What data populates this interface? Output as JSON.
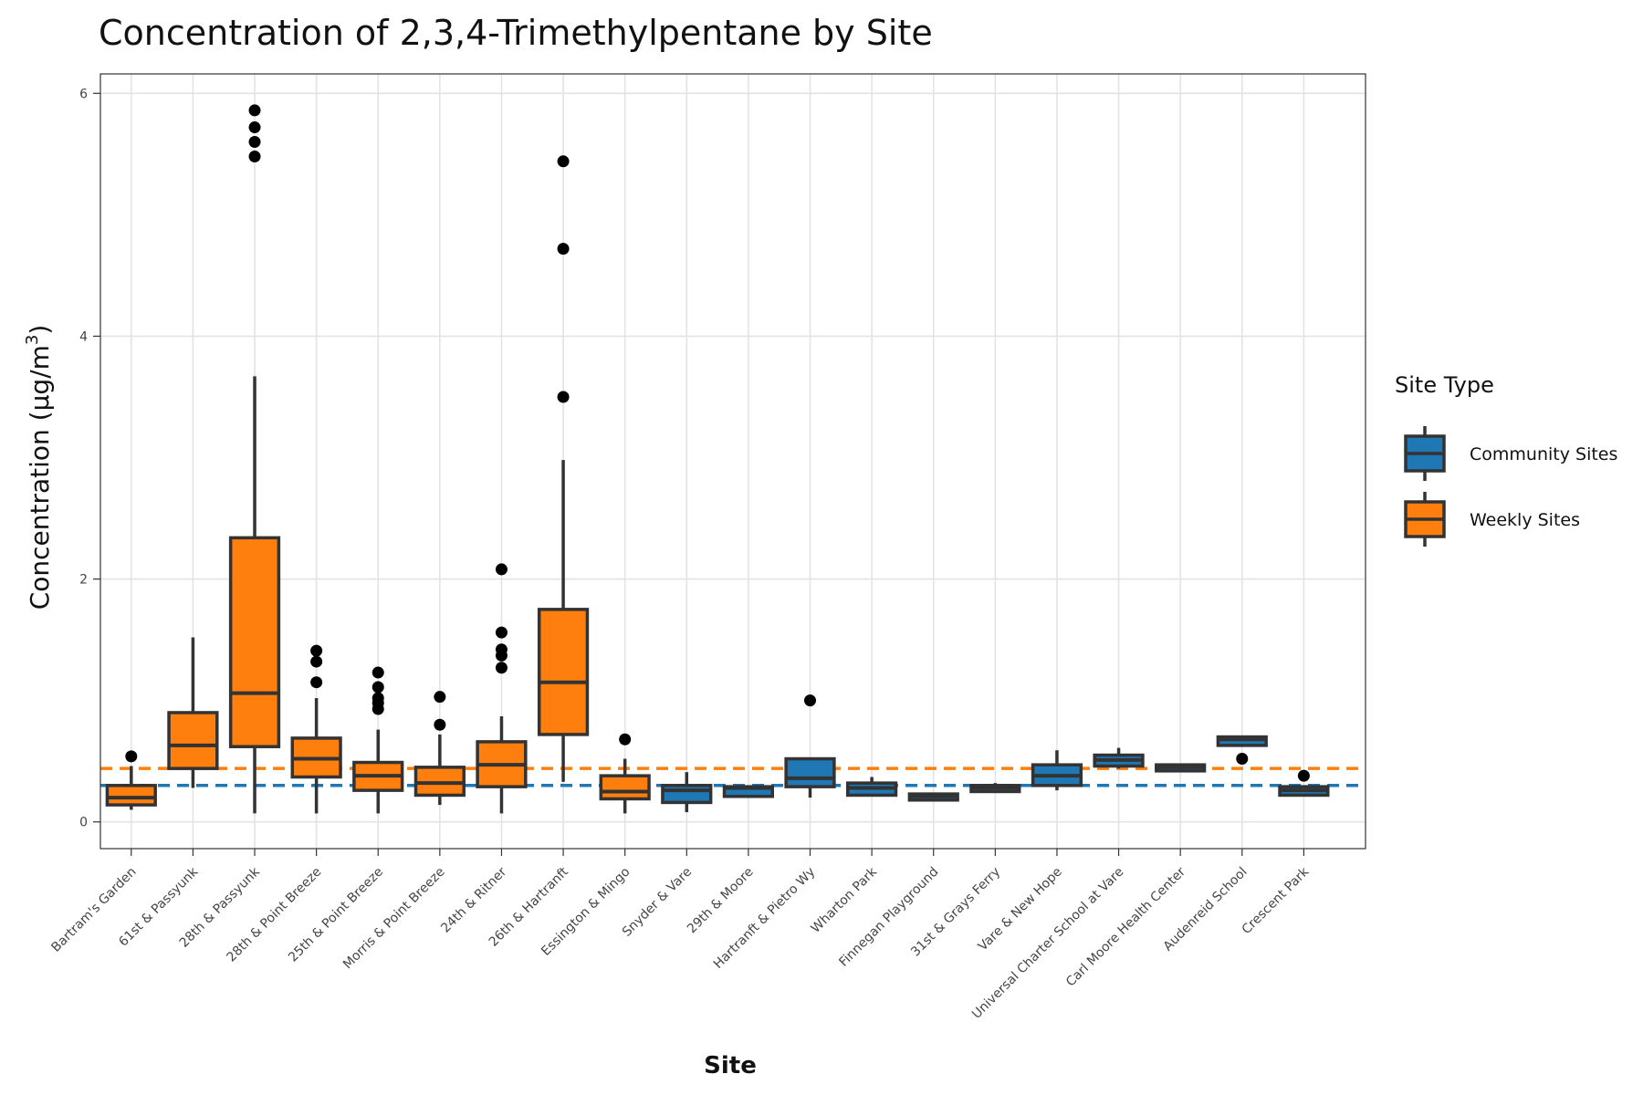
{
  "chart_data": {
    "type": "boxplot",
    "title": "Concentration of 2,3,4-Trimethylpentane by Site",
    "xlabel": "Site",
    "ylabel_main": "Concentration (μg/m",
    "ylabel_sup": "3",
    "ylabel_close": ")",
    "ylim": [
      -0.22,
      6.16
    ],
    "yticks": [
      "0",
      "2",
      "4",
      "6"
    ],
    "grid": true,
    "legend": {
      "title": "Site Type",
      "placement": "right",
      "items": [
        {
          "label": "Community Sites",
          "color": "#1f77b4"
        },
        {
          "label": "Weekly Sites",
          "color": "#ff7f0e"
        }
      ]
    },
    "reference_lines": [
      {
        "group": "Weekly Sites",
        "value": 0.44,
        "color": "#ff7f0e",
        "style": "dashed"
      },
      {
        "group": "Community Sites",
        "value": 0.3,
        "color": "#1f77b4",
        "style": "dashed"
      }
    ],
    "categories": [
      "Bartram's Garden",
      "61st & Passyunk",
      "28th & Passyunk",
      "28th & Point Breeze",
      "25th & Point Breeze",
      "Morris & Point Breeze",
      "24th & Ritner",
      "26th & Hartranft",
      "Essington & Mingo",
      "Snyder & Vare",
      "29th & Moore",
      "Hartranft & Pietro Wy",
      "Wharton Park",
      "Finnegan Playground",
      "31st & Grays Ferry",
      "Vare & New Hope",
      "Universal Charter School at Vare",
      "Carl Moore Health Center",
      "Audenreid School",
      "Crescent Park"
    ],
    "boxes": [
      {
        "site": "Bartram's Garden",
        "group": "Weekly Sites",
        "whisker_low": 0.1,
        "q1": 0.14,
        "median": 0.2,
        "q3": 0.3,
        "whisker_high": 0.46,
        "outliers": [
          0.54
        ]
      },
      {
        "site": "61st & Passyunk",
        "group": "Weekly Sites",
        "whisker_low": 0.28,
        "q1": 0.44,
        "median": 0.63,
        "q3": 0.9,
        "whisker_high": 1.52,
        "outliers": []
      },
      {
        "site": "28th & Passyunk",
        "group": "Weekly Sites",
        "whisker_low": 0.07,
        "q1": 0.62,
        "median": 1.06,
        "q3": 2.34,
        "whisker_high": 3.67,
        "outliers": [
          5.48,
          5.6,
          5.72,
          5.86
        ]
      },
      {
        "site": "28th & Point Breeze",
        "group": "Weekly Sites",
        "whisker_low": 0.07,
        "q1": 0.37,
        "median": 0.52,
        "q3": 0.69,
        "whisker_high": 1.02,
        "outliers": [
          1.15,
          1.32,
          1.41
        ]
      },
      {
        "site": "25th & Point Breeze",
        "group": "Weekly Sites",
        "whisker_low": 0.07,
        "q1": 0.26,
        "median": 0.38,
        "q3": 0.49,
        "whisker_high": 0.76,
        "outliers": [
          0.93,
          0.98,
          1.02,
          1.11,
          1.23
        ]
      },
      {
        "site": "Morris & Point Breeze",
        "group": "Weekly Sites",
        "whisker_low": 0.14,
        "q1": 0.22,
        "median": 0.32,
        "q3": 0.45,
        "whisker_high": 0.72,
        "outliers": [
          0.8,
          1.03
        ]
      },
      {
        "site": "24th & Ritner",
        "group": "Weekly Sites",
        "whisker_low": 0.07,
        "q1": 0.29,
        "median": 0.47,
        "q3": 0.66,
        "whisker_high": 0.87,
        "outliers": [
          1.27,
          1.37,
          1.42,
          1.56,
          2.08
        ]
      },
      {
        "site": "26th & Hartranft",
        "group": "Weekly Sites",
        "whisker_low": 0.33,
        "q1": 0.72,
        "median": 1.15,
        "q3": 1.75,
        "whisker_high": 2.98,
        "outliers": [
          3.5,
          4.72,
          5.44
        ]
      },
      {
        "site": "Essington & Mingo",
        "group": "Weekly Sites",
        "whisker_low": 0.07,
        "q1": 0.19,
        "median": 0.25,
        "q3": 0.38,
        "whisker_high": 0.52,
        "outliers": [
          0.68
        ]
      },
      {
        "site": "Snyder & Vare",
        "group": "Community Sites",
        "whisker_low": 0.08,
        "q1": 0.16,
        "median": 0.26,
        "q3": 0.3,
        "whisker_high": 0.41,
        "outliers": []
      },
      {
        "site": "29th & Moore",
        "group": "Community Sites",
        "whisker_low": 0.21,
        "q1": 0.21,
        "median": 0.28,
        "q3": 0.29,
        "whisker_high": 0.29,
        "outliers": []
      },
      {
        "site": "Hartranft & Pietro Wy",
        "group": "Community Sites",
        "whisker_low": 0.2,
        "q1": 0.29,
        "median": 0.36,
        "q3": 0.52,
        "whisker_high": 0.52,
        "outliers": [
          1.0
        ]
      },
      {
        "site": "Wharton Park",
        "group": "Community Sites",
        "whisker_low": 0.21,
        "q1": 0.22,
        "median": 0.28,
        "q3": 0.32,
        "whisker_high": 0.37,
        "outliers": []
      },
      {
        "site": "Finnegan Playground",
        "group": "Community Sites",
        "whisker_low": 0.18,
        "q1": 0.18,
        "median": 0.21,
        "q3": 0.23,
        "whisker_high": 0.23,
        "outliers": []
      },
      {
        "site": "31st & Grays Ferry",
        "group": "Community Sites",
        "whisker_low": 0.25,
        "q1": 0.25,
        "median": 0.28,
        "q3": 0.3,
        "whisker_high": 0.32,
        "outliers": []
      },
      {
        "site": "Vare & New Hope",
        "group": "Community Sites",
        "whisker_low": 0.26,
        "q1": 0.3,
        "median": 0.38,
        "q3": 0.47,
        "whisker_high": 0.59,
        "outliers": []
      },
      {
        "site": "Universal Charter School at Vare",
        "group": "Community Sites",
        "whisker_low": 0.44,
        "q1": 0.46,
        "median": 0.51,
        "q3": 0.55,
        "whisker_high": 0.61,
        "outliers": []
      },
      {
        "site": "Carl Moore Health Center",
        "group": "Community Sites",
        "whisker_low": 0.41,
        "q1": 0.42,
        "median": 0.45,
        "q3": 0.47,
        "whisker_high": 0.47,
        "outliers": []
      },
      {
        "site": "Audenreid School",
        "group": "Community Sites",
        "whisker_low": 0.63,
        "q1": 0.63,
        "median": 0.68,
        "q3": 0.7,
        "whisker_high": 0.7,
        "outliers": [
          0.52
        ]
      },
      {
        "site": "Crescent Park",
        "group": "Community Sites",
        "whisker_low": 0.22,
        "q1": 0.22,
        "median": 0.26,
        "q3": 0.29,
        "whisker_high": 0.29,
        "outliers": [
          0.38
        ]
      }
    ]
  }
}
